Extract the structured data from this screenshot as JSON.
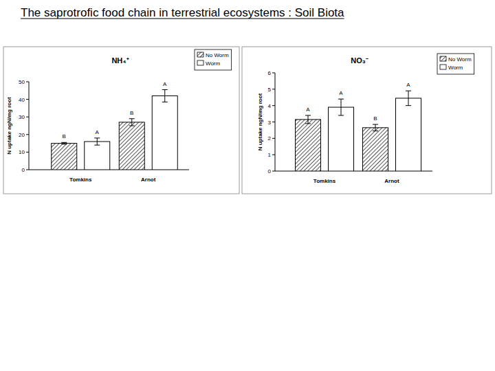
{
  "header": {
    "title": "The saprotrofic food chain in terrestrial ecosystems : Soil Biota"
  },
  "chart_data": [
    {
      "type": "bar",
      "title": "NH₄⁺",
      "y_label": "N uptake ngN/mg root",
      "categories": [
        "Tomkins",
        "Arnot"
      ],
      "series": [
        {
          "name": "No Worm",
          "color": "#555555",
          "values": [
            15,
            27
          ],
          "errors": [
            0.5,
            2
          ],
          "letters": [
            "B",
            "B"
          ]
        },
        {
          "name": "Worm",
          "color": "#ffffff",
          "values": [
            16,
            42
          ],
          "errors": [
            2,
            3.5
          ],
          "letters": [
            "A",
            "A"
          ]
        }
      ],
      "ylim": [
        0,
        50
      ],
      "yticks": [
        0,
        10,
        20,
        30,
        40,
        50
      ],
      "grid": false,
      "legend": "upper right"
    },
    {
      "type": "bar",
      "title": "NO₃⁻",
      "y_label": "N uptake ngN/mg root",
      "categories": [
        "Tomkins",
        "Arnot"
      ],
      "series": [
        {
          "name": "No Worm",
          "color": "#555555",
          "values": [
            3.15,
            2.65
          ],
          "errors": [
            0.25,
            0.2
          ],
          "letters": [
            "A",
            "B"
          ]
        },
        {
          "name": "Worm",
          "color": "#ffffff",
          "values": [
            3.9,
            4.45
          ],
          "errors": [
            0.5,
            0.45
          ],
          "letters": [
            "A",
            "A"
          ]
        }
      ],
      "ylim": [
        0,
        6
      ],
      "yticks": [
        0,
        1,
        2,
        3,
        4,
        5,
        6
      ],
      "grid": false,
      "legend": "upper right"
    }
  ]
}
